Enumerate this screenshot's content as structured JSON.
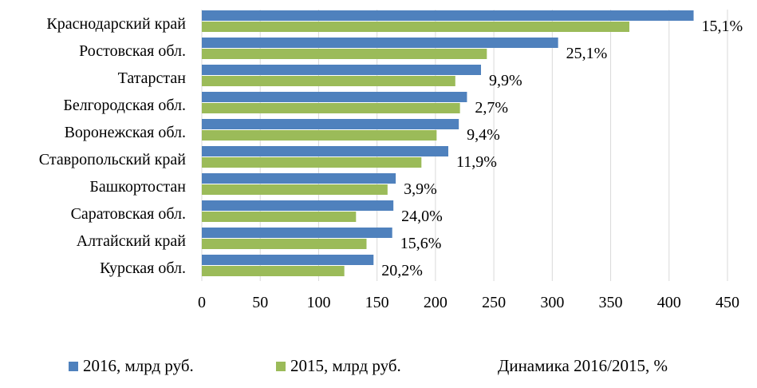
{
  "chart_data": {
    "type": "bar",
    "orientation": "horizontal",
    "categories": [
      "Краснодарский край",
      "Ростовская обл.",
      "Татарстан",
      "Белгородская обл.",
      "Воронежская обл.",
      "Ставропольский край",
      "Башкортостан",
      "Саратовская обл.",
      "Алтайский край",
      "Курская обл."
    ],
    "series": [
      {
        "name": "2016, млрд руб.",
        "color": "#4F81BD",
        "values": [
          421,
          305,
          239,
          227,
          220,
          211,
          166,
          164,
          163,
          147
        ]
      },
      {
        "name": "2015, млрд руб.",
        "color": "#9BBB59",
        "values": [
          366,
          244,
          217,
          221,
          201,
          188,
          159,
          132,
          141,
          122
        ]
      }
    ],
    "data_labels": [
      "15,1%",
      "25,1%",
      "9,9%",
      "2,7%",
      "9,4%",
      "11,9%",
      "3,9%",
      "24,0%",
      "15,6%",
      "20,2%"
    ],
    "data_labels_series": "Динамика 2016/2015, %",
    "xlim": [
      0,
      450
    ],
    "x_ticks": [
      "0",
      "50",
      "100",
      "150",
      "200",
      "250",
      "300",
      "350",
      "400",
      "450"
    ],
    "grid": "vertical",
    "legend_position": "bottom",
    "title": "",
    "xlabel": "",
    "ylabel": ""
  },
  "legend": [
    {
      "label": "2016, млрд руб.",
      "color": "#4F81BD"
    },
    {
      "label": "2015, млрд руб.",
      "color": "#9BBB59"
    },
    {
      "label": "Динамика 2016/2015, %",
      "color": ""
    }
  ]
}
